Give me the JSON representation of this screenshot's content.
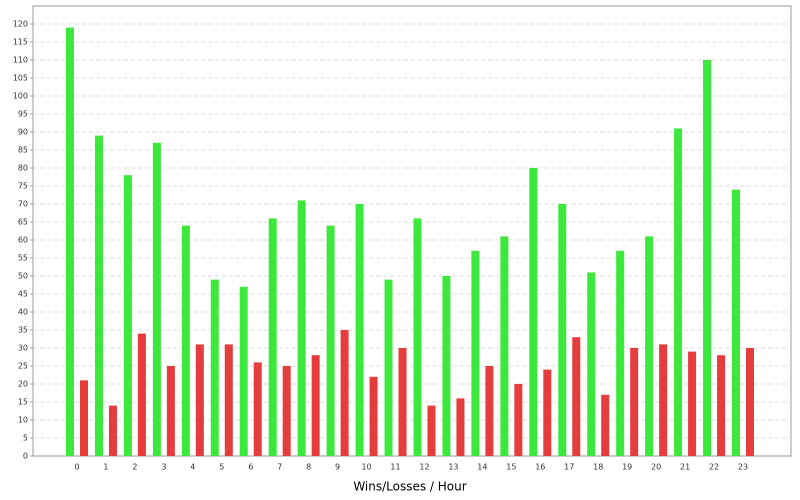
{
  "chart_data": {
    "type": "grouped_bar",
    "x_label": "Wins/Losses / Hour",
    "categories": [
      "0",
      "1",
      "2",
      "3",
      "4",
      "5",
      "6",
      "7",
      "8",
      "9",
      "10",
      "11",
      "12",
      "13",
      "14",
      "15",
      "16",
      "17",
      "18",
      "19",
      "20",
      "21",
      "22",
      "23"
    ],
    "series": [
      {
        "color": "#3de83d",
        "values": [
          119,
          89,
          78,
          87,
          64,
          49,
          47,
          66,
          71,
          64,
          70,
          49,
          66,
          50,
          57,
          61,
          80,
          70,
          51,
          57,
          61,
          91,
          110,
          74
        ]
      },
      {
        "color": "#e53c3c",
        "values": [
          21,
          14,
          34,
          25,
          31,
          31,
          26,
          25,
          28,
          35,
          22,
          30,
          14,
          16,
          25,
          20,
          24,
          33,
          17,
          30,
          31,
          29,
          28,
          30
        ]
      }
    ],
    "ylim": [
      0,
      125
    ],
    "yticks": [
      0,
      5,
      10,
      15,
      20,
      25,
      30,
      35,
      40,
      45,
      50,
      55,
      60,
      65,
      70,
      75,
      80,
      85,
      90,
      95,
      100,
      105,
      110,
      115,
      120
    ],
    "grid": true
  }
}
